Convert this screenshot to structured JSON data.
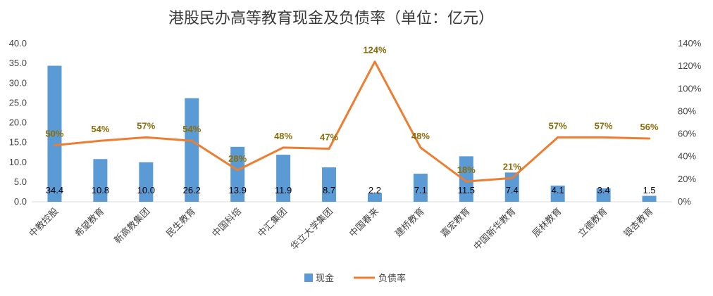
{
  "chart_data": {
    "type": "bar",
    "title": "港股民办高等教育现金及负债率（单位：亿元）",
    "categories": [
      "中教控股",
      "希望教育",
      "新高教集团",
      "民生教育",
      "中国科培",
      "中汇集团",
      "华立大学集团",
      "中国春来",
      "建桥教育",
      "嘉宏教育",
      "中国新华教育",
      "辰林教育",
      "立德教育",
      "银杏教育"
    ],
    "series": [
      {
        "name": "现金",
        "type": "bar",
        "axis": "left",
        "color": "#5b9bd5",
        "values": [
          34.4,
          10.8,
          10.0,
          26.2,
          13.9,
          11.9,
          8.7,
          2.2,
          7.1,
          11.5,
          7.4,
          4.1,
          3.4,
          1.5
        ],
        "labels": [
          "34.4",
          "10.8",
          "10.0",
          "26.2",
          "13.9",
          "11.9",
          "8.7",
          "2.2",
          "7.1",
          "11.5",
          "7.4",
          "4.1",
          "3.4",
          "1.5"
        ]
      },
      {
        "name": "负债率",
        "type": "line",
        "axis": "right",
        "color": "#ed7d31",
        "values": [
          50,
          54,
          57,
          54,
          28,
          48,
          47,
          124,
          48,
          18,
          21,
          57,
          57,
          56
        ],
        "labels": [
          "50%",
          "54%",
          "57%",
          "54%",
          "28%",
          "48%",
          "47%",
          "124%",
          "48%",
          "18%",
          "21%",
          "57%",
          "57%",
          "56%"
        ]
      }
    ],
    "ylim_left": [
      0,
      40
    ],
    "yticks_left": [
      "0.0",
      "5.0",
      "10.0",
      "15.0",
      "20.0",
      "25.0",
      "30.0",
      "35.0",
      "40.0"
    ],
    "ylim_right": [
      0,
      140
    ],
    "yticks_right": [
      "0%",
      "20%",
      "40%",
      "60%",
      "80%",
      "100%",
      "120%",
      "140%"
    ],
    "grid": false,
    "legend": "bottom",
    "bar_label_color": "#000000",
    "line_label_color": "#8a6d0b"
  }
}
